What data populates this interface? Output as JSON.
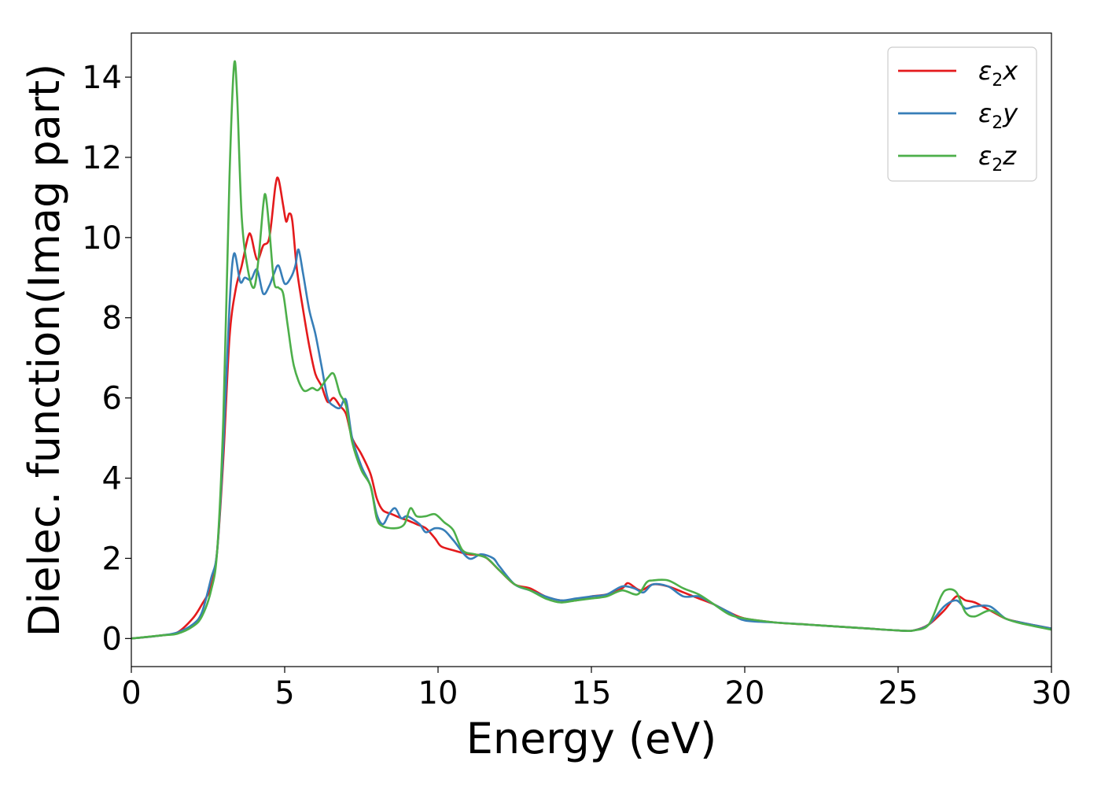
{
  "chart_data": {
    "type": "line",
    "title": "",
    "xlabel": "Energy (eV)",
    "ylabel": "Dielec. function(Imag part)",
    "xlim": [
      0,
      30
    ],
    "ylim": [
      -0.7,
      15.1
    ],
    "xticks": [
      0,
      5,
      10,
      15,
      20,
      25,
      30
    ],
    "xtick_labels": [
      "0",
      "5",
      "10",
      "15",
      "20",
      "25",
      "30"
    ],
    "yticks": [
      0,
      2,
      4,
      6,
      8,
      10,
      12,
      14
    ],
    "ytick_labels": [
      "0",
      "2",
      "4",
      "6",
      "8",
      "10",
      "12",
      "14"
    ],
    "grid": false,
    "legend_position": "top-right",
    "series": [
      {
        "name": "ε₂x",
        "legend_base": "ε",
        "legend_sub": "2",
        "legend_var": "x",
        "color": "#e41a1c",
        "points": [
          [
            0,
            0
          ],
          [
            1,
            0.08
          ],
          [
            1.5,
            0.15
          ],
          [
            2,
            0.5
          ],
          [
            2.3,
            0.85
          ],
          [
            2.6,
            1.3
          ],
          [
            2.8,
            2.2
          ],
          [
            3,
            4.5
          ],
          [
            3.2,
            7.5
          ],
          [
            3.4,
            8.7
          ],
          [
            3.6,
            9.3
          ],
          [
            3.8,
            10
          ],
          [
            3.9,
            10.05
          ],
          [
            4.1,
            9.45
          ],
          [
            4.3,
            9.8
          ],
          [
            4.5,
            10
          ],
          [
            4.7,
            11.3
          ],
          [
            4.8,
            11.45
          ],
          [
            4.95,
            10.8
          ],
          [
            5.05,
            10.4
          ],
          [
            5.15,
            10.6
          ],
          [
            5.25,
            10.4
          ],
          [
            5.4,
            9.2
          ],
          [
            5.6,
            8.2
          ],
          [
            5.8,
            7.3
          ],
          [
            6,
            6.6
          ],
          [
            6.2,
            6.3
          ],
          [
            6.4,
            5.9
          ],
          [
            6.6,
            6
          ],
          [
            6.8,
            5.8
          ],
          [
            7,
            5.6
          ],
          [
            7.2,
            5
          ],
          [
            7.5,
            4.6
          ],
          [
            7.8,
            4.1
          ],
          [
            8,
            3.5
          ],
          [
            8.2,
            3.2
          ],
          [
            8.5,
            3.1
          ],
          [
            8.8,
            3
          ],
          [
            9,
            2.95
          ],
          [
            9.3,
            2.85
          ],
          [
            9.6,
            2.75
          ],
          [
            9.9,
            2.5
          ],
          [
            10.1,
            2.3
          ],
          [
            10.5,
            2.2
          ],
          [
            11,
            2.1
          ],
          [
            11.5,
            2.05
          ],
          [
            12,
            1.7
          ],
          [
            12.5,
            1.35
          ],
          [
            13,
            1.25
          ],
          [
            13.5,
            1.05
          ],
          [
            14,
            0.95
          ],
          [
            14.5,
            0.95
          ],
          [
            15,
            1.05
          ],
          [
            15.5,
            1.1
          ],
          [
            16,
            1.25
          ],
          [
            16.2,
            1.38
          ],
          [
            16.6,
            1.2
          ],
          [
            17,
            1.35
          ],
          [
            17.5,
            1.3
          ],
          [
            18,
            1.15
          ],
          [
            18.5,
            1
          ],
          [
            19,
            0.85
          ],
          [
            19.5,
            0.65
          ],
          [
            20,
            0.5
          ],
          [
            21,
            0.4
          ],
          [
            22,
            0.35
          ],
          [
            23,
            0.3
          ],
          [
            24,
            0.25
          ],
          [
            25,
            0.2
          ],
          [
            25.5,
            0.2
          ],
          [
            26,
            0.35
          ],
          [
            26.5,
            0.7
          ],
          [
            26.9,
            1.05
          ],
          [
            27.2,
            0.95
          ],
          [
            27.5,
            0.9
          ],
          [
            28,
            0.7
          ],
          [
            28.5,
            0.5
          ],
          [
            29,
            0.4
          ],
          [
            30,
            0.25
          ]
        ]
      },
      {
        "name": "ε₂y",
        "legend_base": "ε",
        "legend_sub": "2",
        "legend_var": "y",
        "color": "#377eb8",
        "points": [
          [
            0,
            0
          ],
          [
            1,
            0.08
          ],
          [
            1.5,
            0.15
          ],
          [
            2,
            0.35
          ],
          [
            2.3,
            0.65
          ],
          [
            2.6,
            1.5
          ],
          [
            2.8,
            2.2
          ],
          [
            3,
            4.8
          ],
          [
            3.2,
            8.3
          ],
          [
            3.35,
            9.6
          ],
          [
            3.55,
            8.9
          ],
          [
            3.7,
            9
          ],
          [
            3.9,
            8.95
          ],
          [
            4.1,
            9.2
          ],
          [
            4.3,
            8.6
          ],
          [
            4.5,
            8.8
          ],
          [
            4.65,
            9.1
          ],
          [
            4.8,
            9.3
          ],
          [
            5,
            8.85
          ],
          [
            5.2,
            9
          ],
          [
            5.35,
            9.3
          ],
          [
            5.45,
            9.7
          ],
          [
            5.6,
            9.1
          ],
          [
            5.8,
            8.2
          ],
          [
            6,
            7.6
          ],
          [
            6.2,
            6.8
          ],
          [
            6.4,
            6
          ],
          [
            6.6,
            5.8
          ],
          [
            6.8,
            5.75
          ],
          [
            7,
            5.95
          ],
          [
            7.2,
            5
          ],
          [
            7.5,
            4.3
          ],
          [
            7.8,
            3.8
          ],
          [
            8,
            3.1
          ],
          [
            8.2,
            2.85
          ],
          [
            8.4,
            3.1
          ],
          [
            8.6,
            3.25
          ],
          [
            8.8,
            3
          ],
          [
            9,
            3.05
          ],
          [
            9.4,
            2.85
          ],
          [
            9.6,
            2.65
          ],
          [
            9.9,
            2.75
          ],
          [
            10.2,
            2.7
          ],
          [
            10.5,
            2.45
          ],
          [
            11,
            2
          ],
          [
            11.4,
            2.1
          ],
          [
            11.8,
            2
          ],
          [
            12,
            1.8
          ],
          [
            12.5,
            1.35
          ],
          [
            13,
            1.2
          ],
          [
            13.5,
            1.05
          ],
          [
            14,
            0.95
          ],
          [
            14.5,
            1
          ],
          [
            15,
            1.05
          ],
          [
            15.5,
            1.1
          ],
          [
            16,
            1.3
          ],
          [
            16.4,
            1.25
          ],
          [
            16.7,
            1.15
          ],
          [
            17,
            1.35
          ],
          [
            17.5,
            1.3
          ],
          [
            18,
            1.05
          ],
          [
            18.5,
            1.05
          ],
          [
            19,
            0.85
          ],
          [
            19.5,
            0.65
          ],
          [
            20,
            0.45
          ],
          [
            21,
            0.4
          ],
          [
            22,
            0.35
          ],
          [
            23,
            0.3
          ],
          [
            24,
            0.25
          ],
          [
            25,
            0.2
          ],
          [
            25.5,
            0.2
          ],
          [
            26,
            0.35
          ],
          [
            26.5,
            0.8
          ],
          [
            26.9,
            0.95
          ],
          [
            27.2,
            0.75
          ],
          [
            27.5,
            0.8
          ],
          [
            28,
            0.8
          ],
          [
            28.5,
            0.5
          ],
          [
            29,
            0.4
          ],
          [
            30,
            0.25
          ]
        ]
      },
      {
        "name": "ε₂z",
        "legend_base": "ε",
        "legend_sub": "2",
        "legend_var": "z",
        "color": "#4daf4a",
        "points": [
          [
            0,
            0
          ],
          [
            1,
            0.08
          ],
          [
            1.5,
            0.12
          ],
          [
            2,
            0.3
          ],
          [
            2.3,
            0.55
          ],
          [
            2.6,
            1.2
          ],
          [
            2.8,
            2.2
          ],
          [
            3,
            5.5
          ],
          [
            3.2,
            11.5
          ],
          [
            3.35,
            14.3
          ],
          [
            3.45,
            13.5
          ],
          [
            3.6,
            10.5
          ],
          [
            3.8,
            9.2
          ],
          [
            4,
            8.75
          ],
          [
            4.15,
            9.5
          ],
          [
            4.3,
            10.8
          ],
          [
            4.38,
            11.05
          ],
          [
            4.5,
            10.2
          ],
          [
            4.65,
            8.9
          ],
          [
            4.8,
            8.75
          ],
          [
            4.95,
            8.6
          ],
          [
            5.1,
            7.8
          ],
          [
            5.3,
            6.8
          ],
          [
            5.6,
            6.2
          ],
          [
            5.9,
            6.25
          ],
          [
            6.1,
            6.2
          ],
          [
            6.4,
            6.5
          ],
          [
            6.6,
            6.6
          ],
          [
            6.8,
            6.1
          ],
          [
            7,
            5.8
          ],
          [
            7.2,
            4.9
          ],
          [
            7.5,
            4.2
          ],
          [
            7.8,
            3.8
          ],
          [
            8,
            3
          ],
          [
            8.2,
            2.8
          ],
          [
            8.6,
            2.75
          ],
          [
            8.9,
            2.85
          ],
          [
            9.1,
            3.25
          ],
          [
            9.3,
            3.05
          ],
          [
            9.6,
            3.05
          ],
          [
            9.9,
            3.1
          ],
          [
            10.2,
            2.9
          ],
          [
            10.5,
            2.7
          ],
          [
            10.8,
            2.2
          ],
          [
            11.2,
            2.1
          ],
          [
            11.6,
            2
          ],
          [
            12,
            1.7
          ],
          [
            12.5,
            1.35
          ],
          [
            13,
            1.2
          ],
          [
            13.5,
            1
          ],
          [
            14,
            0.9
          ],
          [
            14.5,
            0.95
          ],
          [
            15,
            1
          ],
          [
            15.5,
            1.05
          ],
          [
            16,
            1.2
          ],
          [
            16.5,
            1.1
          ],
          [
            16.8,
            1.4
          ],
          [
            17,
            1.45
          ],
          [
            17.5,
            1.45
          ],
          [
            18,
            1.25
          ],
          [
            18.5,
            1.1
          ],
          [
            19,
            0.85
          ],
          [
            19.5,
            0.6
          ],
          [
            20,
            0.5
          ],
          [
            21,
            0.4
          ],
          [
            22,
            0.35
          ],
          [
            23,
            0.3
          ],
          [
            24,
            0.25
          ],
          [
            25,
            0.2
          ],
          [
            25.5,
            0.2
          ],
          [
            26,
            0.35
          ],
          [
            26.4,
            1.05
          ],
          [
            26.6,
            1.22
          ],
          [
            26.9,
            1.15
          ],
          [
            27.2,
            0.65
          ],
          [
            27.5,
            0.55
          ],
          [
            28,
            0.7
          ],
          [
            28.5,
            0.5
          ],
          [
            29,
            0.38
          ],
          [
            30,
            0.22
          ]
        ]
      }
    ]
  }
}
